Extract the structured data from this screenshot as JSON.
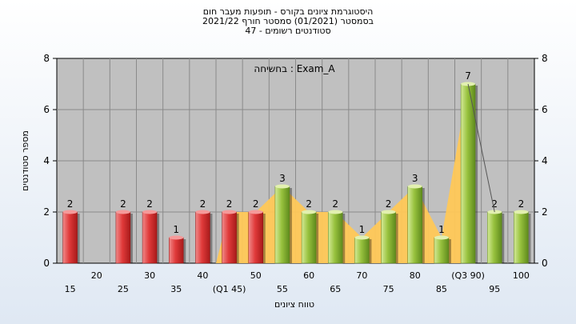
{
  "titles": [
    "היסטוגרמת ציונים בקורס - תופעות מעבר חום",
    "בסמסטר  (01/2021)  סמסטר חורף 2021/22",
    "סטודנטים רשומים - 47"
  ],
  "chart_data": {
    "type": "bar",
    "title": "היסטוגרמת ציונים בקורס - תופעות מעבר חום",
    "subtitle": "בסמסטר  (01/2021)  סמסטר חורף 2021/22 | סטודנטים רשומים - 47",
    "annotation": "בחשיחה : Exam_A",
    "xlabel": "טווח ציונים",
    "ylabel": "מספר סטודנטים",
    "ylim": [
      0,
      8
    ],
    "yticks": [
      0,
      2,
      4,
      6,
      8
    ],
    "grid": true,
    "categories": [
      15,
      20,
      25,
      30,
      35,
      40,
      45,
      50,
      55,
      60,
      65,
      70,
      75,
      80,
      85,
      90,
      95,
      100
    ],
    "category_labels": [
      "15",
      "20",
      "25",
      "30",
      "35",
      "40",
      "(Q1 45)",
      "50",
      "55",
      "60",
      "65",
      "70",
      "75",
      "80",
      "85",
      "(Q3 90)",
      "95",
      "100"
    ],
    "values": [
      2,
      0,
      2,
      2,
      1,
      2,
      2,
      2,
      3,
      2,
      2,
      1,
      2,
      3,
      1,
      7,
      2,
      2
    ],
    "bar_colors": [
      "red",
      "none",
      "red",
      "red",
      "red",
      "red",
      "red",
      "red",
      "green",
      "green",
      "green",
      "green",
      "green",
      "green",
      "green",
      "green",
      "green",
      "green"
    ],
    "colors": {
      "red": "#d93a3a",
      "green": "#93bd3a",
      "area": "#ffc857",
      "plot_bg": "#c0c0c0",
      "grid": "#8a8a8a"
    },
    "area_range": [
      45,
      90
    ]
  }
}
